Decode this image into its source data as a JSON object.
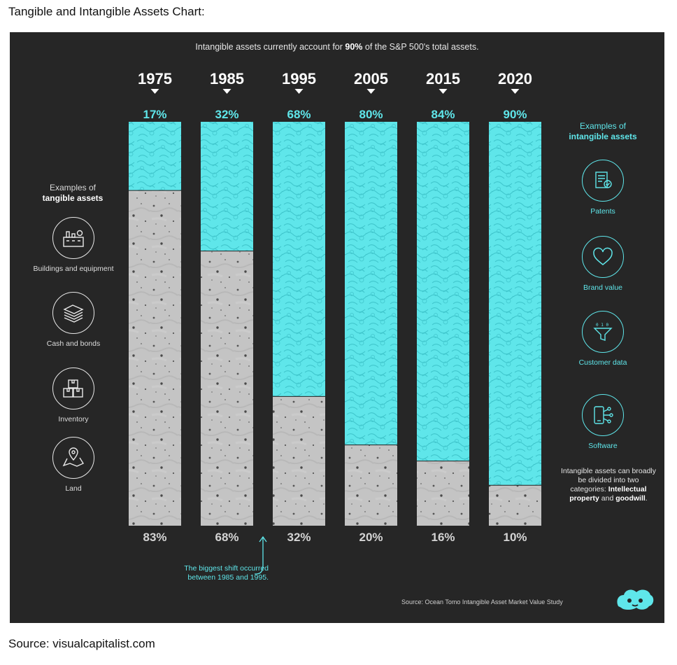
{
  "page": {
    "title": "Tangible and Intangible Assets Chart:",
    "source": "Source: visualcapitalist.com"
  },
  "headline": {
    "prefix": "Intangible assets currently account for ",
    "bold": "90%",
    "suffix": " of the S&P 500's total assets."
  },
  "left_panel": {
    "title_line1": "Examples of",
    "title_line2": "tangible assets",
    "items": [
      {
        "label": "Buildings and equipment",
        "icon": "factory-icon"
      },
      {
        "label": "Cash and bonds",
        "icon": "cash-icon"
      },
      {
        "label": "Inventory",
        "icon": "boxes-icon"
      },
      {
        "label": "Land",
        "icon": "map-pin-icon"
      }
    ]
  },
  "right_panel": {
    "title_line1": "Examples of",
    "title_line2": "intangible assets",
    "items": [
      {
        "label": "Patents",
        "icon": "certificate-icon"
      },
      {
        "label": "Brand value",
        "icon": "heart-icon"
      },
      {
        "label": "Customer data",
        "icon": "funnel-icon"
      },
      {
        "label": "Software",
        "icon": "phone-network-icon"
      }
    ],
    "note_text": "Intangible assets can broadly be divided into two categories:",
    "note_bold1": "Intellectual property",
    "note_and": " and ",
    "note_bold2": "goodwill",
    "note_end": "."
  },
  "shift_note": {
    "line1": "The biggest shift occurred",
    "line2": "between 1985 and 1995."
  },
  "footer": {
    "source": "Source: Ocean Tomo Intangible Asset Market Value Study"
  },
  "colors": {
    "intangible": "#5fe6ea",
    "tangible": "#c4c4c4",
    "background": "#262626"
  },
  "chart_data": {
    "type": "bar",
    "stacked": true,
    "categories": [
      "1975",
      "1985",
      "1995",
      "2005",
      "2015",
      "2020"
    ],
    "series": [
      {
        "name": "Intangible assets",
        "values": [
          17,
          32,
          68,
          80,
          84,
          90
        ],
        "labels": [
          "17%",
          "32%",
          "68%",
          "80%",
          "84%",
          "90%"
        ]
      },
      {
        "name": "Tangible assets",
        "values": [
          83,
          68,
          32,
          20,
          16,
          10
        ],
        "labels": [
          "83%",
          "68%",
          "32%",
          "20%",
          "16%",
          "10%"
        ]
      }
    ],
    "ylim": [
      0,
      100
    ]
  }
}
